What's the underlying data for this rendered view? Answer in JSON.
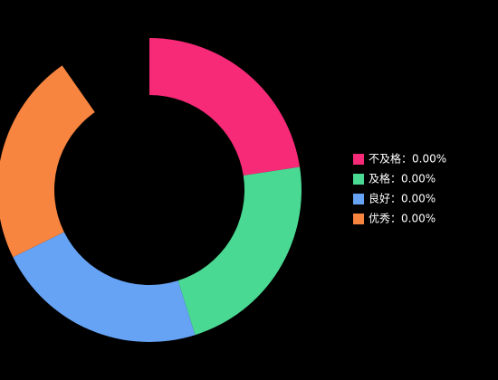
{
  "chart_data": {
    "type": "donut",
    "categories": [
      "不及格：0.00%",
      "及格：0.00%",
      "良好：0.00%",
      "优秀：0.00%"
    ],
    "values": [
      0,
      0,
      0,
      0
    ],
    "colors": [
      "#f72a78",
      "#4ad993",
      "#66a3f5",
      "#f7843f"
    ],
    "zero_sum_equal_slices": true,
    "start_angle": 0,
    "sweep_angle": 325,
    "legend": "right"
  }
}
